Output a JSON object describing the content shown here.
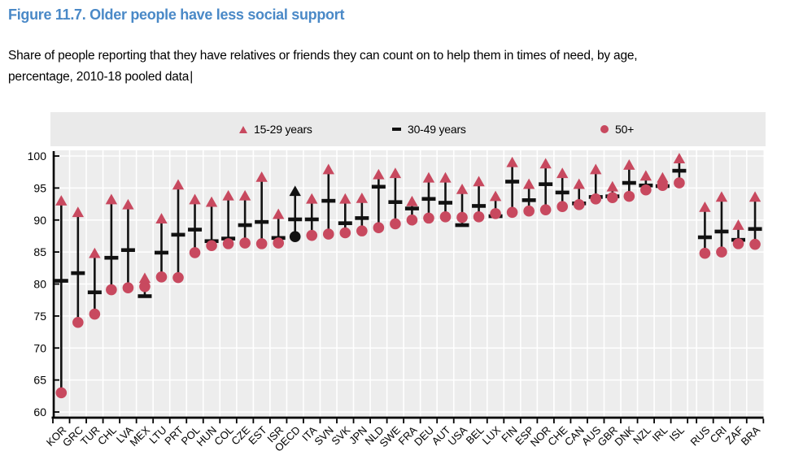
{
  "page": {
    "title": "Figure 11.7. Older people have less social support",
    "subtitle_line1": "Share of people reporting that they have relatives or friends they can count on to help them in times of need, by age,",
    "subtitle_line2": "percentage, 2010-18 pooled data",
    "text_cursor": "|"
  },
  "legend": {
    "items": [
      {
        "label": "15-29 years",
        "marker": "triangle",
        "color": "#c8495f"
      },
      {
        "label": "30-49 years",
        "marker": "dash",
        "color": "#111111"
      },
      {
        "label": "50+",
        "marker": "circle",
        "color": "#c8495f"
      }
    ],
    "position": "top"
  },
  "colors": {
    "title_blue": "#4a89c7",
    "marker_red": "#c8495f",
    "marker_black": "#111111",
    "plot_bg": "#ededed",
    "legend_bg": "#eaeaea",
    "grid": "#ffffff",
    "axis": "#000000"
  },
  "chart_data": {
    "type": "scatter",
    "title": "Share of people with relatives or friends they can count on, by age group",
    "xlabel": "",
    "ylabel": "",
    "ylim": [
      60,
      100
    ],
    "yticks": [
      60,
      65,
      70,
      75,
      80,
      85,
      90,
      95,
      100
    ],
    "grid": true,
    "legend_position": "top",
    "series_names": [
      "15-29 years",
      "30-49 years",
      "50+"
    ],
    "highlight_code": "OECD",
    "gap_after_index": 37,
    "countries": [
      {
        "code": "KOR",
        "y15_29": 93.0,
        "y30_49": 80.5,
        "y50plus": 63.0
      },
      {
        "code": "GRC",
        "y15_29": 91.2,
        "y30_49": 81.7,
        "y50plus": 74.0
      },
      {
        "code": "TUR",
        "y15_29": 84.8,
        "y30_49": 78.7,
        "y50plus": 75.3
      },
      {
        "code": "CHL",
        "y15_29": 93.2,
        "y30_49": 84.1,
        "y50plus": 79.1
      },
      {
        "code": "LVA",
        "y15_29": 92.4,
        "y30_49": 85.3,
        "y50plus": 79.4
      },
      {
        "code": "MEX",
        "y15_29": 80.9,
        "y30_49": 78.1,
        "y50plus": 79.6
      },
      {
        "code": "LTU",
        "y15_29": 90.2,
        "y30_49": 84.9,
        "y50plus": 81.1
      },
      {
        "code": "PRT",
        "y15_29": 95.5,
        "y30_49": 87.7,
        "y50plus": 81.0
      },
      {
        "code": "POL",
        "y15_29": 93.2,
        "y30_49": 88.5,
        "y50plus": 84.9
      },
      {
        "code": "HUN",
        "y15_29": 92.8,
        "y30_49": 86.7,
        "y50plus": 86.0
      },
      {
        "code": "COL",
        "y15_29": 93.8,
        "y30_49": 87.1,
        "y50plus": 86.3
      },
      {
        "code": "CZE",
        "y15_29": 93.8,
        "y30_49": 89.2,
        "y50plus": 86.4
      },
      {
        "code": "EST",
        "y15_29": 96.7,
        "y30_49": 89.7,
        "y50plus": 86.3
      },
      {
        "code": "ISR",
        "y15_29": 90.9,
        "y30_49": 87.2,
        "y50plus": 86.4
      },
      {
        "code": "OECD",
        "y15_29": 94.5,
        "y30_49": 90.1,
        "y50plus": 87.4
      },
      {
        "code": "ITA",
        "y15_29": 93.3,
        "y30_49": 90.1,
        "y50plus": 87.6
      },
      {
        "code": "SVN",
        "y15_29": 97.9,
        "y30_49": 93.0,
        "y50plus": 87.8
      },
      {
        "code": "SVK",
        "y15_29": 93.3,
        "y30_49": 89.5,
        "y50plus": 88.0
      },
      {
        "code": "JPN",
        "y15_29": 93.4,
        "y30_49": 90.3,
        "y50plus": 88.3
      },
      {
        "code": "NLD",
        "y15_29": 97.1,
        "y30_49": 95.2,
        "y50plus": 88.8
      },
      {
        "code": "SWE",
        "y15_29": 97.3,
        "y30_49": 92.8,
        "y50plus": 89.4
      },
      {
        "code": "FRA",
        "y15_29": 92.9,
        "y30_49": 91.8,
        "y50plus": 90.0
      },
      {
        "code": "DEU",
        "y15_29": 96.6,
        "y30_49": 93.3,
        "y50plus": 90.3
      },
      {
        "code": "AUT",
        "y15_29": 96.6,
        "y30_49": 92.7,
        "y50plus": 90.5
      },
      {
        "code": "USA",
        "y15_29": 94.8,
        "y30_49": 89.2,
        "y50plus": 90.4
      },
      {
        "code": "BEL",
        "y15_29": 96.0,
        "y30_49": 92.2,
        "y50plus": 90.5
      },
      {
        "code": "LUX",
        "y15_29": 93.7,
        "y30_49": 90.6,
        "y50plus": 91.0
      },
      {
        "code": "FIN",
        "y15_29": 99.0,
        "y30_49": 96.0,
        "y50plus": 91.2
      },
      {
        "code": "ESP",
        "y15_29": 95.6,
        "y30_49": 93.1,
        "y50plus": 91.4
      },
      {
        "code": "NOR",
        "y15_29": 98.8,
        "y30_49": 95.6,
        "y50plus": 91.6
      },
      {
        "code": "CHE",
        "y15_29": 97.3,
        "y30_49": 94.3,
        "y50plus": 92.1
      },
      {
        "code": "CAN",
        "y15_29": 95.6,
        "y30_49": 92.6,
        "y50plus": 92.4
      },
      {
        "code": "AUS",
        "y15_29": 97.9,
        "y30_49": 93.6,
        "y50plus": 93.3
      },
      {
        "code": "GBR",
        "y15_29": 95.2,
        "y30_49": 93.7,
        "y50plus": 93.5
      },
      {
        "code": "DNK",
        "y15_29": 98.6,
        "y30_49": 95.8,
        "y50plus": 93.7
      },
      {
        "code": "NZL",
        "y15_29": 96.9,
        "y30_49": 95.4,
        "y50plus": 94.7
      },
      {
        "code": "IRL",
        "y15_29": 96.6,
        "y30_49": 95.3,
        "y50plus": 95.4
      },
      {
        "code": "ISL",
        "y15_29": 99.6,
        "y30_49": 97.7,
        "y50plus": 95.8
      },
      {
        "code": "RUS",
        "y15_29": 92.0,
        "y30_49": 87.3,
        "y50plus": 84.8
      },
      {
        "code": "CRI",
        "y15_29": 93.6,
        "y30_49": 88.2,
        "y50plus": 85.0
      },
      {
        "code": "ZAF",
        "y15_29": 89.2,
        "y30_49": 86.9,
        "y50plus": 86.3
      },
      {
        "code": "BRA",
        "y15_29": 93.6,
        "y30_49": 88.6,
        "y50plus": 86.2
      }
    ]
  }
}
